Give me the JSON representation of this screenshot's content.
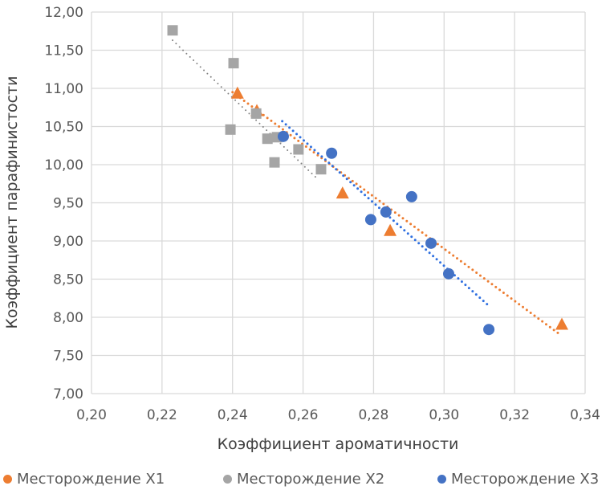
{
  "chart_data": {
    "type": "scatter",
    "xlabel": "Коэффициент ароматичности",
    "ylabel": "Коэффициент парафинистости",
    "xlim": [
      0.2,
      0.34
    ],
    "ylim": [
      7.0,
      12.0
    ],
    "xticks": [
      "0,20",
      "0,22",
      "0,24",
      "0,26",
      "0,28",
      "0,30",
      "0,32",
      "0,34"
    ],
    "yticks": [
      "7,00",
      "7,50",
      "8,00",
      "8,50",
      "9,00",
      "9,50",
      "10,00",
      "10,50",
      "11,00",
      "11,50",
      "12,00"
    ],
    "grid": true,
    "legend_position": "bottom",
    "trendlines": "linear, dotted",
    "series": [
      {
        "name": "Месторождение X1",
        "color": "#ED7D31",
        "marker": "triangle",
        "x": [
          0.2414,
          0.2469,
          0.2712,
          0.2847,
          0.3334
        ],
        "y": [
          10.94,
          10.71,
          9.63,
          9.14,
          7.91
        ],
        "trend": {
          "x": [
            0.24,
            0.333
          ],
          "y": [
            10.95,
            7.77
          ]
        }
      },
      {
        "name": "Месторождение X2",
        "color": "#A5A5A5",
        "marker": "square",
        "x": [
          0.223,
          0.2403,
          0.2467,
          0.2394,
          0.2499,
          0.2526,
          0.2587,
          0.2519,
          0.2651
        ],
        "y": [
          11.76,
          11.33,
          10.67,
          10.46,
          10.34,
          10.36,
          10.2,
          10.03,
          9.94
        ],
        "trend": {
          "x": [
            0.223,
            0.2644
          ],
          "y": [
            11.63,
            9.8
          ]
        }
      },
      {
        "name": "Месторождение X3",
        "color": "#4472C4",
        "marker": "circle",
        "x": [
          0.2544,
          0.2681,
          0.2908,
          0.2792,
          0.2835,
          0.2963,
          0.3013,
          0.3127
        ],
        "y": [
          10.37,
          10.15,
          9.58,
          9.28,
          9.38,
          8.97,
          8.57,
          7.84
        ],
        "trend": {
          "x": [
            0.2541,
            0.3127
          ],
          "y": [
            10.57,
            8.15
          ]
        }
      }
    ]
  }
}
